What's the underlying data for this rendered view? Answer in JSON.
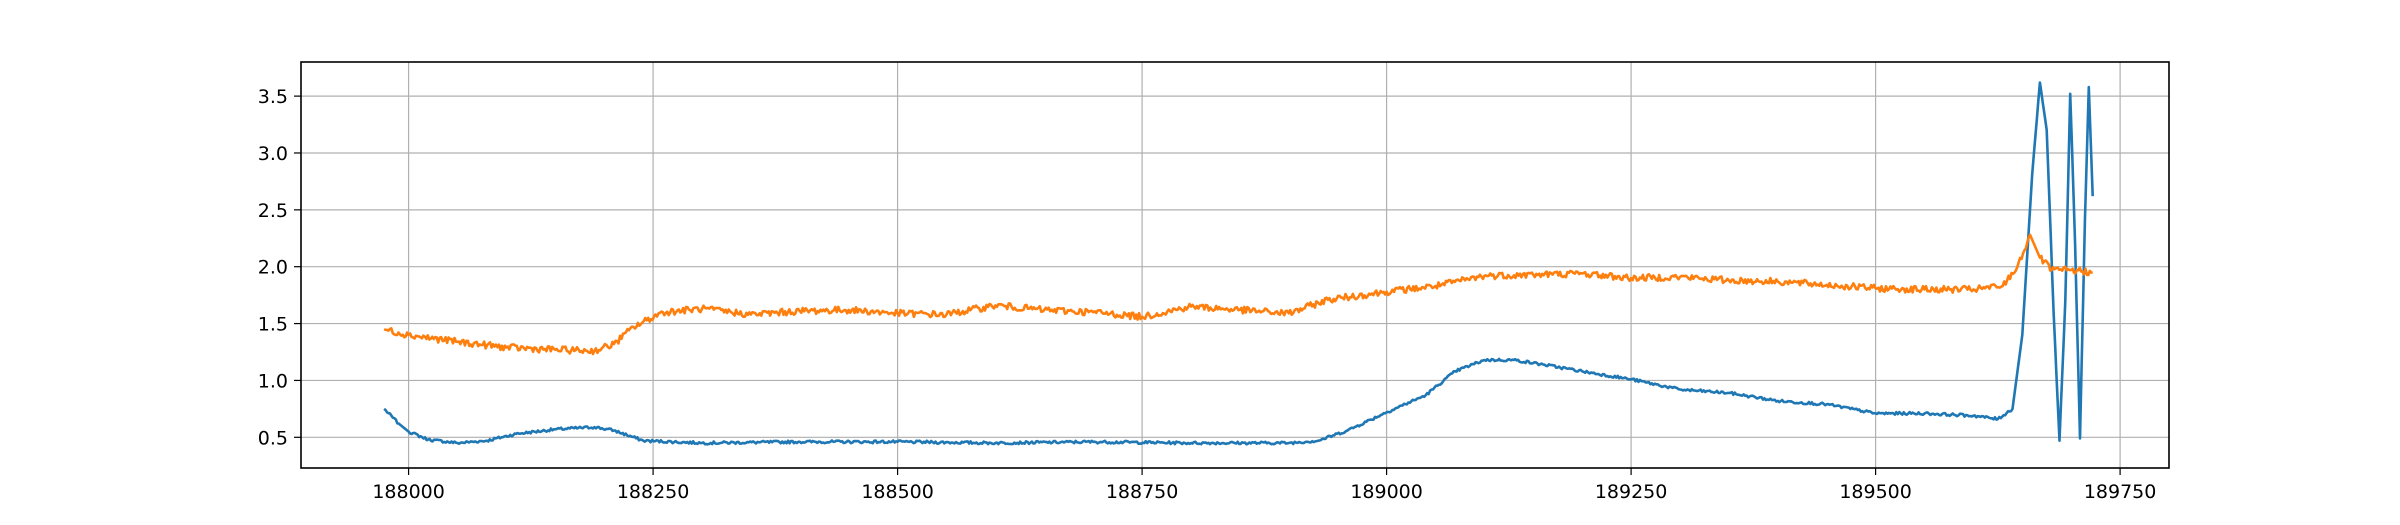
{
  "chart_data": {
    "type": "line",
    "title": "",
    "xlabel": "",
    "ylabel": "",
    "xlim": [
      187890,
      189800
    ],
    "ylim": [
      0.23,
      3.8
    ],
    "grid": true,
    "x_ticks": [
      188000,
      188250,
      188500,
      188750,
      189000,
      189250,
      189500,
      189750
    ],
    "x_tick_labels": [
      "188000",
      "188250",
      "188500",
      "188750",
      "189000",
      "189250",
      "189500",
      "189750"
    ],
    "y_ticks": [
      0.5,
      1.0,
      1.5,
      2.0,
      2.5,
      3.0,
      3.5
    ],
    "y_tick_labels": [
      "0.5",
      "1.0",
      "1.5",
      "2.0",
      "2.5",
      "3.0",
      "3.5"
    ],
    "series": [
      {
        "color": "#1f77b4",
        "noise": 0.012,
        "points": [
          [
            187975,
            0.75
          ],
          [
            187990,
            0.62
          ],
          [
            188000,
            0.55
          ],
          [
            188020,
            0.48
          ],
          [
            188050,
            0.45
          ],
          [
            188080,
            0.47
          ],
          [
            188110,
            0.53
          ],
          [
            188150,
            0.57
          ],
          [
            188190,
            0.59
          ],
          [
            188210,
            0.56
          ],
          [
            188240,
            0.47
          ],
          [
            188300,
            0.45
          ],
          [
            188400,
            0.46
          ],
          [
            188500,
            0.46
          ],
          [
            188600,
            0.45
          ],
          [
            188700,
            0.46
          ],
          [
            188800,
            0.45
          ],
          [
            188900,
            0.45
          ],
          [
            188930,
            0.47
          ],
          [
            188960,
            0.56
          ],
          [
            189000,
            0.72
          ],
          [
            189040,
            0.87
          ],
          [
            189070,
            1.08
          ],
          [
            189100,
            1.18
          ],
          [
            189130,
            1.18
          ],
          [
            189160,
            1.14
          ],
          [
            189200,
            1.08
          ],
          [
            189250,
            1.01
          ],
          [
            189300,
            0.92
          ],
          [
            189350,
            0.89
          ],
          [
            189400,
            0.82
          ],
          [
            189450,
            0.79
          ],
          [
            189500,
            0.71
          ],
          [
            189550,
            0.71
          ],
          [
            189600,
            0.69
          ],
          [
            189625,
            0.66
          ],
          [
            189640,
            0.75
          ],
          [
            189650,
            1.4
          ],
          [
            189660,
            2.8
          ],
          [
            189668,
            3.62
          ],
          [
            189675,
            3.2
          ],
          [
            189682,
            1.6
          ],
          [
            189688,
            0.47
          ],
          [
            189694,
            1.7
          ],
          [
            189699,
            3.52
          ],
          [
            189704,
            2.2
          ],
          [
            189709,
            0.49
          ],
          [
            189714,
            2.4
          ],
          [
            189718,
            3.58
          ],
          [
            189722,
            2.62
          ]
        ]
      },
      {
        "color": "#ff7f0e",
        "noise": 0.03,
        "points": [
          [
            187975,
            1.45
          ],
          [
            188000,
            1.4
          ],
          [
            188050,
            1.34
          ],
          [
            188100,
            1.29
          ],
          [
            188150,
            1.27
          ],
          [
            188190,
            1.26
          ],
          [
            188210,
            1.32
          ],
          [
            188230,
            1.47
          ],
          [
            188260,
            1.6
          ],
          [
            188300,
            1.63
          ],
          [
            188350,
            1.58
          ],
          [
            188400,
            1.61
          ],
          [
            188450,
            1.62
          ],
          [
            188500,
            1.59
          ],
          [
            188550,
            1.58
          ],
          [
            188600,
            1.66
          ],
          [
            188650,
            1.62
          ],
          [
            188700,
            1.6
          ],
          [
            188750,
            1.56
          ],
          [
            188800,
            1.65
          ],
          [
            188850,
            1.62
          ],
          [
            188900,
            1.59
          ],
          [
            188940,
            1.71
          ],
          [
            189000,
            1.78
          ],
          [
            189050,
            1.83
          ],
          [
            189100,
            1.92
          ],
          [
            189150,
            1.93
          ],
          [
            189200,
            1.94
          ],
          [
            189250,
            1.9
          ],
          [
            189300,
            1.91
          ],
          [
            189350,
            1.88
          ],
          [
            189400,
            1.87
          ],
          [
            189450,
            1.84
          ],
          [
            189500,
            1.81
          ],
          [
            189550,
            1.8
          ],
          [
            189600,
            1.8
          ],
          [
            189630,
            1.83
          ],
          [
            189645,
            2.0
          ],
          [
            189658,
            2.28
          ],
          [
            189668,
            2.08
          ],
          [
            189680,
            1.97
          ],
          [
            189700,
            1.97
          ],
          [
            189722,
            1.95
          ]
        ]
      }
    ]
  }
}
